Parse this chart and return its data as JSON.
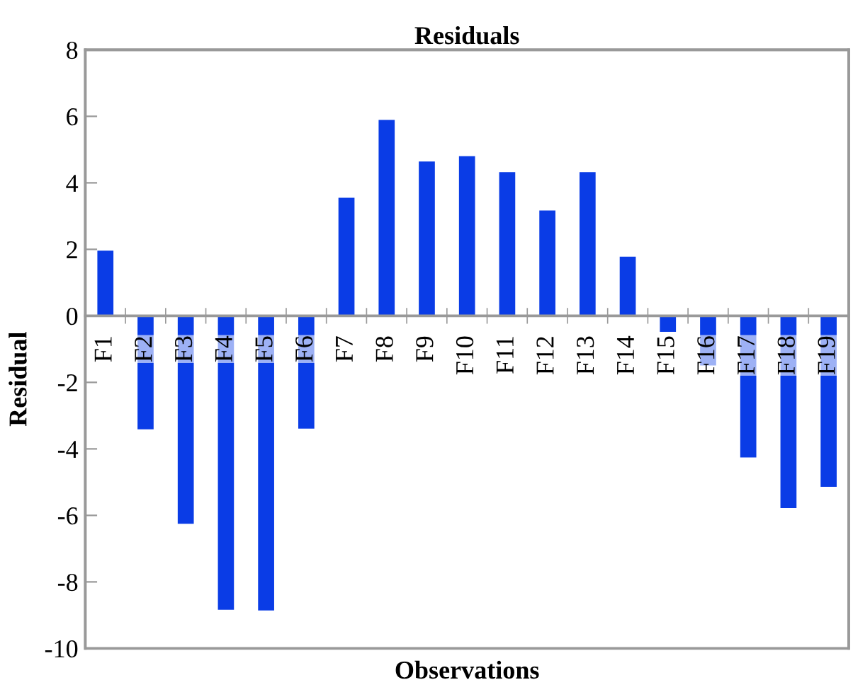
{
  "chart_data": {
    "type": "bar",
    "title": "Residuals",
    "xlabel": "Observations",
    "ylabel": "Residual",
    "categories": [
      "F1",
      "F2",
      "F3",
      "F4",
      "F5",
      "F6",
      "F7",
      "F8",
      "F9",
      "F10",
      "F11",
      "F12",
      "F13",
      "F14",
      "F15",
      "F16",
      "F17",
      "F18",
      "F19"
    ],
    "values": [
      1.96,
      -3.41,
      -6.25,
      -8.84,
      -8.86,
      -3.39,
      3.55,
      5.89,
      4.64,
      4.8,
      4.32,
      3.17,
      4.32,
      1.78,
      -0.48,
      -1.49,
      -4.26,
      -5.78,
      -5.14
    ],
    "color": "#0a3ce6",
    "ylim": [
      -10,
      8
    ],
    "yticks": [
      -10,
      -8,
      -6,
      -4,
      -2,
      0,
      2,
      4,
      6,
      8
    ],
    "grid": false
  }
}
